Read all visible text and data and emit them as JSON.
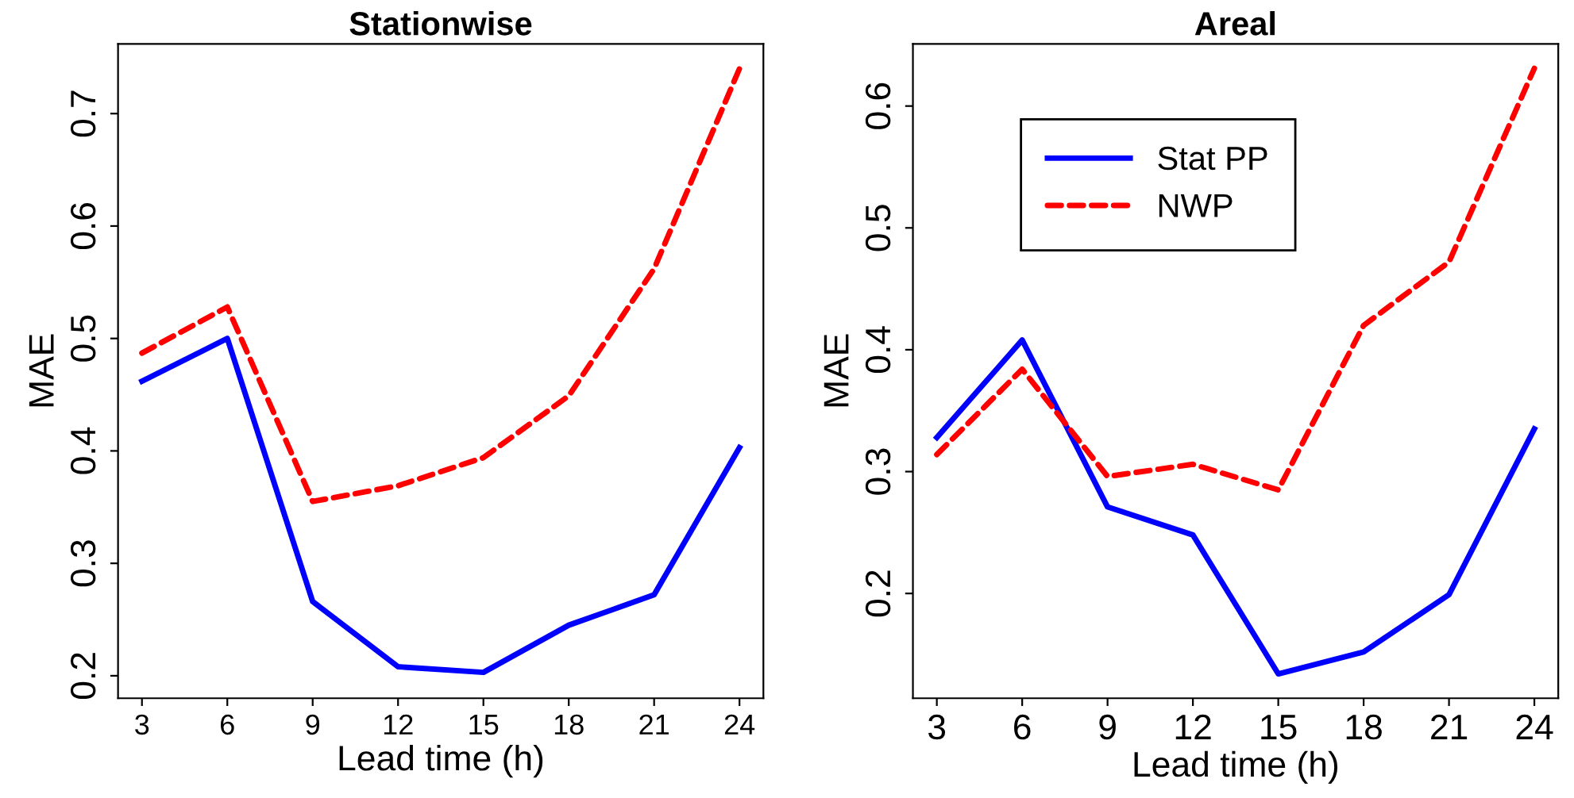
{
  "chart_data": [
    {
      "type": "line",
      "title": "Stationwise",
      "xlabel": "Lead time (h)",
      "ylabel": "MAE",
      "x": [
        3,
        6,
        9,
        12,
        15,
        18,
        21,
        24
      ],
      "xlim": [
        2.16,
        24.84
      ],
      "xticks": [
        3,
        6,
        9,
        12,
        15,
        18,
        21,
        24
      ],
      "ylim": [
        0.18,
        0.762
      ],
      "yticks": [
        0.2,
        0.3,
        0.4,
        0.5,
        0.6,
        0.7
      ],
      "grid": false,
      "legend": false,
      "series": [
        {
          "color": "#0000ff",
          "line_style": "solid",
          "values": [
            0.462,
            0.5,
            0.266,
            0.208,
            0.203,
            0.245,
            0.272,
            0.403
          ]
        },
        {
          "color": "#ff0000",
          "line_style": "dashed",
          "values": [
            0.487,
            0.528,
            0.355,
            0.369,
            0.394,
            0.449,
            0.562,
            0.74
          ]
        }
      ]
    },
    {
      "type": "line",
      "title": "Areal",
      "xlabel": "Lead time (h)",
      "ylabel": "MAE",
      "x": [
        3,
        6,
        9,
        12,
        15,
        18,
        21,
        24
      ],
      "xlim": [
        2.16,
        24.84
      ],
      "xticks": [
        3,
        6,
        9,
        12,
        15,
        18,
        21,
        24
      ],
      "ylim": [
        0.114,
        0.651
      ],
      "yticks": [
        0.2,
        0.3,
        0.4,
        0.5,
        0.6
      ],
      "grid": false,
      "legend": "top",
      "series": [
        {
          "name": "Stat PP",
          "color": "#0000ff",
          "line_style": "solid",
          "values": [
            0.328,
            0.408,
            0.271,
            0.248,
            0.134,
            0.152,
            0.199,
            0.335
          ]
        },
        {
          "name": "NWP",
          "color": "#ff0000",
          "line_style": "dashed",
          "values": [
            0.314,
            0.384,
            0.296,
            0.306,
            0.285,
            0.42,
            0.472,
            0.631
          ]
        }
      ]
    }
  ]
}
